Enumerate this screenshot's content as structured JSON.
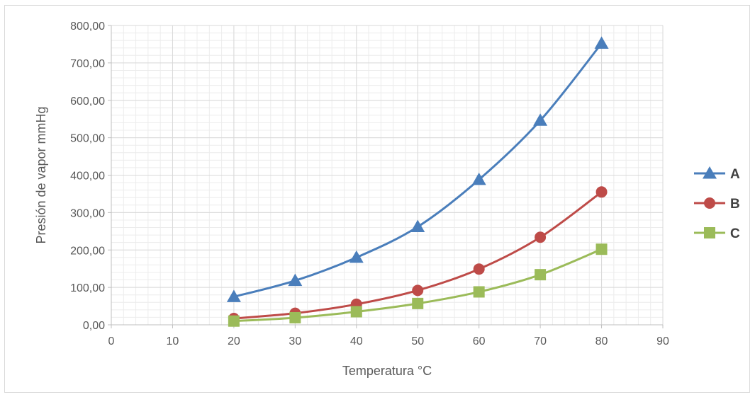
{
  "chart_data": {
    "type": "scatter",
    "xlabel": "Temperatura °C",
    "ylabel": "Presión de vapor mmHg",
    "xlim": [
      0,
      90
    ],
    "ylim": [
      0,
      800
    ],
    "x_ticks": [
      "0",
      "10",
      "20",
      "30",
      "40",
      "50",
      "60",
      "70",
      "80",
      "90"
    ],
    "y_ticks": [
      "0,00",
      "100,00",
      "200,00",
      "300,00",
      "400,00",
      "500,00",
      "600,00",
      "700,00",
      "800,00"
    ],
    "grid": true,
    "minor_grid": true,
    "legend_position": "right",
    "line_style": "smooth lines with markers",
    "series": [
      {
        "name": "A",
        "marker": "triangle",
        "color": "#4a7ebb",
        "x": [
          20,
          30,
          40,
          50,
          60,
          70,
          80
        ],
        "values": [
          75,
          118,
          180,
          262,
          388,
          546,
          752
        ]
      },
      {
        "name": "B",
        "marker": "circle",
        "color": "#be4b48",
        "x": [
          20,
          30,
          40,
          50,
          60,
          70,
          80
        ],
        "values": [
          17,
          31,
          55,
          92,
          149,
          234,
          355
        ]
      },
      {
        "name": "C",
        "marker": "square",
        "color": "#9bbb59",
        "x": [
          20,
          30,
          40,
          50,
          60,
          70,
          80
        ],
        "values": [
          10,
          19,
          35,
          57,
          88,
          134,
          202
        ]
      }
    ]
  }
}
